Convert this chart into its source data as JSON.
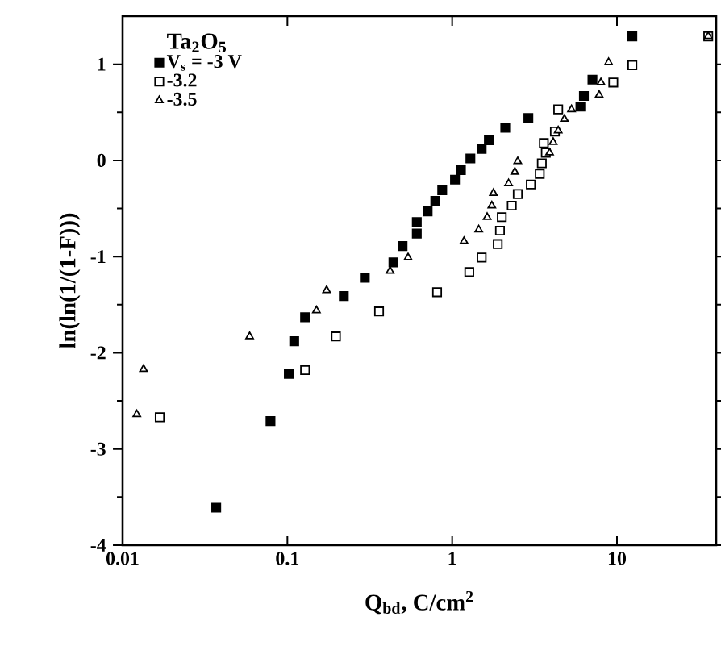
{
  "chart_data": {
    "type": "scatter",
    "legend_title": "Ta$_{2}$O$_{5}$",
    "xlabel": "Q$_{bd}$, C/cm$^{2}$",
    "ylabel": "ln(ln(1/(1-F)))",
    "log": "x",
    "xlim": [
      0.01,
      40
    ],
    "ylim": [
      -4,
      1.5
    ],
    "xticks": [
      0.01,
      0.1,
      1,
      10
    ],
    "yticks": [
      -4,
      -3,
      -2,
      -1,
      0,
      1
    ],
    "legend": "top left",
    "grid": false,
    "series": [
      {
        "name": "V$_{s}$ = -3 V",
        "color": "#000000",
        "marker": "square",
        "x": [
          0.037,
          0.079,
          0.102,
          0.11,
          0.128,
          0.22,
          0.295,
          0.44,
          0.5,
          0.61,
          0.61,
          0.71,
          0.79,
          0.87,
          1.04,
          1.13,
          1.29,
          1.51,
          1.67,
          2.1,
          2.9,
          6.0,
          6.3,
          7.1,
          12.4
        ],
        "values": [
          -3.61,
          -2.71,
          -2.22,
          -1.88,
          -1.63,
          -1.41,
          -1.22,
          -1.06,
          -0.89,
          -0.76,
          -0.64,
          -0.53,
          -0.42,
          -0.31,
          -0.2,
          -0.1,
          0.02,
          0.12,
          0.21,
          0.34,
          0.44,
          0.56,
          0.67,
          0.84,
          1.29
        ]
      },
      {
        "name": "-3.2",
        "color": "#000000",
        "marker": "square-open",
        "x": [
          0.0168,
          0.128,
          0.197,
          0.36,
          0.81,
          1.27,
          1.51,
          1.89,
          1.95,
          2.0,
          2.3,
          2.5,
          3.0,
          3.4,
          3.5,
          3.7,
          3.6,
          4.2,
          4.4,
          9.5,
          12.4,
          35.8
        ],
        "values": [
          -2.67,
          -2.18,
          -1.83,
          -1.57,
          -1.37,
          -1.16,
          -1.01,
          -0.87,
          -0.73,
          -0.59,
          -0.47,
          -0.35,
          -0.25,
          -0.14,
          -0.03,
          0.08,
          0.18,
          0.3,
          0.53,
          0.81,
          0.99,
          1.29
        ]
      },
      {
        "name": "-3.5",
        "color": "#000000",
        "marker": "triangle-open",
        "x": [
          0.0122,
          0.0134,
          0.059,
          0.15,
          0.173,
          0.42,
          0.54,
          1.18,
          1.45,
          1.63,
          1.74,
          1.78,
          2.2,
          2.4,
          2.5,
          3.9,
          4.1,
          4.4,
          4.8,
          5.3,
          7.8,
          8.0,
          8.9,
          35.8
        ],
        "values": [
          -2.64,
          -2.17,
          -1.83,
          -1.56,
          -1.35,
          -1.15,
          -1.01,
          -0.84,
          -0.72,
          -0.59,
          -0.47,
          -0.34,
          -0.24,
          -0.12,
          -0.01,
          0.08,
          0.19,
          0.31,
          0.43,
          0.53,
          0.68,
          0.81,
          1.02,
          1.29
        ]
      }
    ]
  }
}
